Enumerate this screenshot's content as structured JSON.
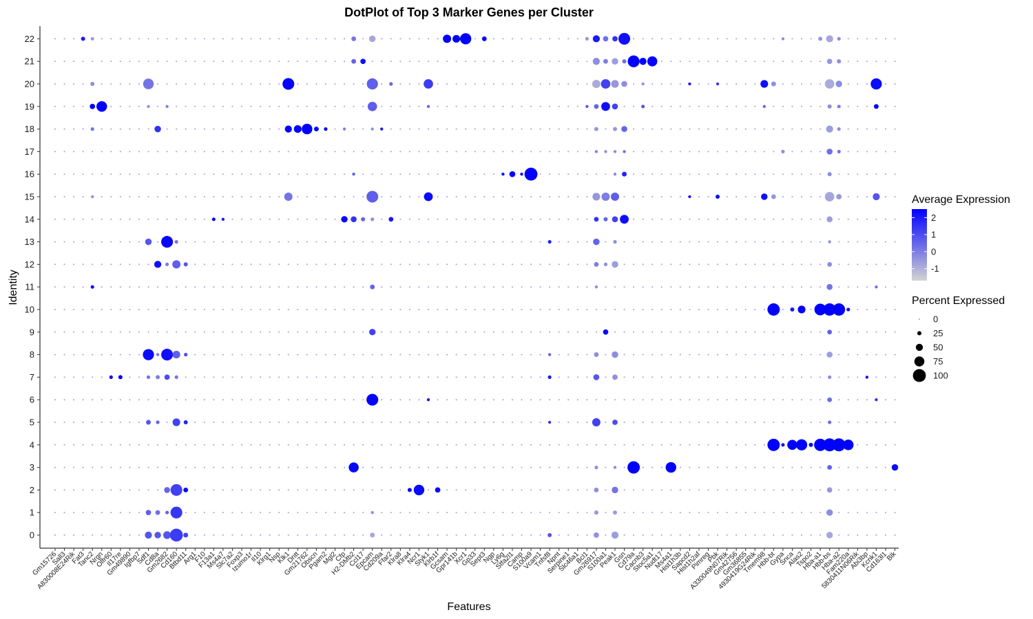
{
  "chart_data": {
    "type": "dotplot",
    "title": "DotPlot of Top 3 Marker Genes per Cluster",
    "xlabel": "Features",
    "ylabel": "Identity",
    "features": [
      "Gm15726",
      "Sall3",
      "A830008E24Rik",
      "Fat3",
      "Tanc2",
      "Nrgn",
      "Olfr60",
      "Il17re",
      "Gm49890",
      "Igfbp7",
      "Sdf1",
      "Cd8a",
      "Gm2682",
      "Cd160",
      "Btbd11",
      "Arg1",
      "F10",
      "F13a1",
      "Ms4a7",
      "Slc7a2",
      "Foxp3",
      "Izumo1r",
      "Il10",
      "Klrg1",
      "Nsp",
      "Klk1",
      "Dntt",
      "Gm21762",
      "Obscn",
      "Pgam2",
      "Mgl2",
      "Cfp",
      "H2-DMb2",
      "Ccl17",
      "Epcam",
      "Cd209a",
      "Ffar2",
      "Klra8",
      "Klra4",
      "Ncr1",
      "Styk1",
      "Klrb1f",
      "Gcsam",
      "Gpr141b",
      "Xcr1",
      "Gp33",
      "Sept3",
      "Ngp",
      "Ly6g",
      "Stfa2l1",
      "Camp",
      "S100a9",
      "Vcam1",
      "Tnfsf8",
      "Npnt",
      "Serpine1",
      "Slc46a1",
      "Bcl1",
      "Gm26917",
      "S100a1",
      "Peak1",
      "Gsn",
      "Cd79a",
      "Cacnb3",
      "Stoc5a1",
      "Nudt17",
      "Ms4a1",
      "Hist1h3b",
      "Sapcd2",
      "Hist1h2af",
      "Pimreg",
      "Pbk",
      "A330049N07Rik",
      "Gm42756",
      "Gm36855",
      "4930419G24Rik",
      "Tmem98",
      "Hbb-bt",
      "Gypa",
      "Snca",
      "Alas2",
      "Tspo2",
      "Hba-a1",
      "Hbb-bs",
      "Hba-a2",
      "Fam220a",
      "5830411N06Rik",
      "Abi3bp",
      "Kcnk1",
      "Cd163l1",
      "Blk"
    ],
    "identities": [
      "0",
      "1",
      "2",
      "3",
      "4",
      "5",
      "6",
      "7",
      "8",
      "9",
      "10",
      "11",
      "12",
      "13",
      "14",
      "15",
      "16",
      "17",
      "18",
      "19",
      "20",
      "21",
      "22"
    ],
    "dots": [
      [
        "22",
        "Fat3",
        25,
        2
      ],
      [
        "22",
        "Tanc2",
        18,
        -0.5
      ],
      [
        "22",
        "H2-DMb2",
        30,
        0.2
      ],
      [
        "22",
        "Epcam",
        45,
        -0.8
      ],
      [
        "22",
        "Gcsam",
        60,
        2.5
      ],
      [
        "22",
        "Gpr141b",
        55,
        2.5
      ],
      [
        "22",
        "Xcr1",
        85,
        2.5
      ],
      [
        "22",
        "Sept3",
        30,
        2.3
      ],
      [
        "22",
        "Bcl1",
        20,
        -0.5
      ],
      [
        "22",
        "Gm26917",
        50,
        2
      ],
      [
        "22",
        "S100a1",
        35,
        0.3
      ],
      [
        "22",
        "Peak1",
        35,
        1.5
      ],
      [
        "22",
        "Gsn",
        90,
        2.2
      ],
      [
        "22",
        "Gypa",
        15,
        -0.3
      ],
      [
        "22",
        "Hbb-bs",
        50,
        -0.8
      ],
      [
        "22",
        "Hba-a1",
        25,
        -0.5
      ],
      [
        "22",
        "Hba-a2",
        20,
        -0.3
      ],
      [
        "21",
        "H2-DMb2",
        30,
        0.5
      ],
      [
        "21",
        "Ccl17",
        35,
        2.2
      ],
      [
        "21",
        "Gm26917",
        50,
        -0.3
      ],
      [
        "21",
        "S100a1",
        30,
        0
      ],
      [
        "21",
        "Peak1",
        45,
        -0.6
      ],
      [
        "21",
        "Gsn",
        25,
        0.3
      ],
      [
        "21",
        "Cd79a",
        90,
        2.5
      ],
      [
        "21",
        "Cacnb3",
        50,
        2.5
      ],
      [
        "21",
        "Stoc5a1",
        75,
        2.4
      ],
      [
        "21",
        "Hbb-bs",
        35,
        -0.5
      ],
      [
        "21",
        "Hba-a2",
        25,
        -0.3
      ],
      [
        "20",
        "Tanc2",
        25,
        -0.3
      ],
      [
        "20",
        "Sdf1",
        80,
        0.2
      ],
      [
        "20",
        "Klk1",
        90,
        2.4
      ],
      [
        "20",
        "Epcam",
        85,
        0.6
      ],
      [
        "20",
        "Ffar2",
        20,
        0.5
      ],
      [
        "20",
        "Styk1",
        70,
        1.3
      ],
      [
        "20",
        "Gm26917",
        60,
        -0.9
      ],
      [
        "20",
        "S100a1",
        70,
        1.2
      ],
      [
        "20",
        "Peak1",
        55,
        -0.5
      ],
      [
        "20",
        "Gsn",
        40,
        -0.3
      ],
      [
        "20",
        "Cacnb3",
        15,
        -0.3
      ],
      [
        "20",
        "Sapcd2",
        15,
        2
      ],
      [
        "20",
        "Pbk",
        15,
        1.5
      ],
      [
        "20",
        "Tmem98",
        55,
        2.2
      ],
      [
        "20",
        "Hbb-bt",
        30,
        -0.3
      ],
      [
        "20",
        "Hbb-bs",
        70,
        -0.9
      ],
      [
        "20",
        "Hba-a2",
        45,
        -0.3
      ],
      [
        "20",
        "Kcnk1",
        85,
        2.3
      ],
      [
        "19",
        "Tanc2",
        35,
        2.5
      ],
      [
        "19",
        "Nrgn",
        80,
        2.5
      ],
      [
        "19",
        "Sdf1",
        15,
        -0.3
      ],
      [
        "19",
        "Gm2682",
        15,
        0
      ],
      [
        "19",
        "Epcam",
        70,
        0.6
      ],
      [
        "19",
        "Styk1",
        15,
        0.5
      ],
      [
        "19",
        "Bcl1",
        15,
        0.8
      ],
      [
        "19",
        "Gm26917",
        30,
        0.5
      ],
      [
        "19",
        "S100a1",
        65,
        2.2
      ],
      [
        "19",
        "Peak1",
        40,
        1.2
      ],
      [
        "19",
        "Cacnb3",
        20,
        0.8
      ],
      [
        "19",
        "Tmem98",
        15,
        0.5
      ],
      [
        "19",
        "Hbb-bs",
        25,
        -0.3
      ],
      [
        "19",
        "Hba-a2",
        20,
        0
      ],
      [
        "19",
        "Kcnk1",
        30,
        2.5
      ],
      [
        "18",
        "Tanc2",
        20,
        0.2
      ],
      [
        "18",
        "Cd8a",
        45,
        1.5
      ],
      [
        "18",
        "Klk1",
        50,
        2.5
      ],
      [
        "18",
        "Dntt",
        55,
        2.5
      ],
      [
        "18",
        "Gm21762",
        80,
        2.5
      ],
      [
        "18",
        "Obscn",
        30,
        2.4
      ],
      [
        "18",
        "Pgam2",
        20,
        2.4
      ],
      [
        "18",
        "Cfp",
        15,
        0
      ],
      [
        "18",
        "Epcam",
        15,
        -0.3
      ],
      [
        "18",
        "Cd209a",
        15,
        2
      ],
      [
        "18",
        "Gm26917",
        25,
        -0.5
      ],
      [
        "18",
        "Peak1",
        25,
        -0.5
      ],
      [
        "18",
        "Gsn",
        40,
        0.5
      ],
      [
        "18",
        "Hbb-bs",
        50,
        -0.6
      ],
      [
        "18",
        "Hba-a2",
        20,
        -0.3
      ],
      [
        "17",
        "Gm26917",
        15,
        0
      ],
      [
        "17",
        "S100a1",
        15,
        -0.3
      ],
      [
        "17",
        "Peak1",
        15,
        -0.2
      ],
      [
        "17",
        "Gsn",
        15,
        0.3
      ],
      [
        "17",
        "Hbb-bs",
        40,
        0.3
      ],
      [
        "17",
        "Hba-a2",
        20,
        0.2
      ],
      [
        "17",
        "Gypa",
        20,
        -0.3
      ],
      [
        "16",
        "H2-DMb2",
        15,
        0.6
      ],
      [
        "16",
        "Ly6g",
        15,
        2.4
      ],
      [
        "16",
        "Stfa2l1",
        40,
        2.4
      ],
      [
        "16",
        "Camp",
        15,
        2.4
      ],
      [
        "16",
        "S100a9",
        100,
        2.5
      ],
      [
        "16",
        "Gsn",
        30,
        1.8
      ],
      [
        "16",
        "Peak1",
        15,
        -0.2
      ],
      [
        "16",
        "Hbb-bs",
        25,
        -0.3
      ],
      [
        "15",
        "Tanc2",
        15,
        -0.3
      ],
      [
        "15",
        "Klk1",
        60,
        0.2
      ],
      [
        "15",
        "Epcam",
        90,
        0.6
      ],
      [
        "15",
        "Styk1",
        65,
        2.3
      ],
      [
        "15",
        "Gm26917",
        55,
        -0.5
      ],
      [
        "15",
        "S100a1",
        60,
        0
      ],
      [
        "15",
        "Peak1",
        60,
        0.6
      ],
      [
        "15",
        "Tmem98",
        45,
        2.2
      ],
      [
        "15",
        "Hbb-bt",
        30,
        -0.5
      ],
      [
        "15",
        "Hbb-bs",
        70,
        -0.8
      ],
      [
        "15",
        "Hba-a2",
        35,
        -0.5
      ],
      [
        "15",
        "Kcnk1",
        50,
        0.8
      ],
      [
        "15",
        "Sapcd2",
        15,
        2
      ],
      [
        "15",
        "Pbk",
        25,
        2.3
      ],
      [
        "14",
        "Cfp",
        45,
        2.3
      ],
      [
        "14",
        "H2-DMb2",
        40,
        1.5
      ],
      [
        "14",
        "Ccl17",
        25,
        0.5
      ],
      [
        "14",
        "Epcam",
        20,
        -0.3
      ],
      [
        "14",
        "Ffar2",
        30,
        2
      ],
      [
        "14",
        "F13a1",
        20,
        2.3
      ],
      [
        "14",
        "Ms4a7",
        15,
        2
      ],
      [
        "14",
        "Gm26917",
        30,
        1.5
      ],
      [
        "14",
        "S100a1",
        25,
        0.5
      ],
      [
        "14",
        "Peak1",
        40,
        1.2
      ],
      [
        "14",
        "Gsn",
        65,
        2.2
      ],
      [
        "14",
        "Hbb-bs",
        40,
        -0.6
      ],
      [
        "13",
        "Sdf1",
        45,
        0.8
      ],
      [
        "13",
        "Gm2682",
        90,
        2.4
      ],
      [
        "13",
        "Cd160",
        20,
        0.2
      ],
      [
        "13",
        "Tnfsf8",
        20,
        1.8
      ],
      [
        "13",
        "Gm26917",
        45,
        0.5
      ],
      [
        "13",
        "Peak1",
        20,
        -0.3
      ],
      [
        "13",
        "Hbb-bs",
        15,
        -0.3
      ],
      [
        "12",
        "Cd8a",
        50,
        2.2
      ],
      [
        "12",
        "Cd160",
        60,
        0.6
      ],
      [
        "12",
        "Gm2682",
        20,
        0
      ],
      [
        "12",
        "Btbd11",
        25,
        0.8
      ],
      [
        "12",
        "Gm26917",
        30,
        0
      ],
      [
        "12",
        "Peak1",
        45,
        -0.6
      ],
      [
        "12",
        "S100a1",
        20,
        -0.3
      ],
      [
        "12",
        "Hbb-bs",
        30,
        -0.3
      ],
      [
        "11",
        "Tanc2",
        20,
        2.2
      ],
      [
        "11",
        "Epcam",
        30,
        0.5
      ],
      [
        "11",
        "Hbb-bs",
        40,
        0.2
      ],
      [
        "11",
        "Gm26917",
        15,
        -0.3
      ],
      [
        "11",
        "Kcnk1",
        15,
        0.3
      ],
      [
        "10",
        "Hbb-bt",
        95,
        2.5
      ],
      [
        "10",
        "Snca",
        25,
        2
      ],
      [
        "10",
        "Alas2",
        55,
        2.5
      ],
      [
        "10",
        "Hba-a1",
        90,
        2.5
      ],
      [
        "10",
        "Hbb-bs",
        95,
        2.5
      ],
      [
        "10",
        "Hba-a2",
        95,
        2.5
      ],
      [
        "10",
        "Fam220a",
        20,
        2.2
      ],
      [
        "9",
        "Epcam",
        45,
        1.2
      ],
      [
        "9",
        "S100a1",
        35,
        2.3
      ],
      [
        "9",
        "Hbb-bs",
        30,
        0.5
      ],
      [
        "8",
        "Sdf1",
        85,
        2.3
      ],
      [
        "8",
        "Cd8a",
        15,
        0.3
      ],
      [
        "8",
        "Gm2682",
        90,
        2.2
      ],
      [
        "8",
        "Cd160",
        55,
        0.6
      ],
      [
        "8",
        "Btbd11",
        20,
        1
      ],
      [
        "8",
        "Gm26917",
        30,
        -0.3
      ],
      [
        "8",
        "Peak1",
        45,
        -0.3
      ],
      [
        "8",
        "Tnfsf8",
        15,
        0.5
      ],
      [
        "8",
        "Hbb-bs",
        40,
        -0.6
      ],
      [
        "7",
        "Olfr60",
        20,
        2.5
      ],
      [
        "7",
        "Il17re",
        25,
        2.5
      ],
      [
        "7",
        "Sdf1",
        20,
        0.2
      ],
      [
        "7",
        "Cd8a",
        25,
        0
      ],
      [
        "7",
        "Gm2682",
        35,
        1
      ],
      [
        "7",
        "Cd160",
        20,
        0.2
      ],
      [
        "7",
        "Gm26917",
        40,
        0.8
      ],
      [
        "7",
        "Peak1",
        35,
        -0.3
      ],
      [
        "7",
        "Tnfsf8",
        20,
        2
      ],
      [
        "7",
        "Hbb-bs",
        20,
        -0.3
      ],
      [
        "7",
        "Abi3bp",
        15,
        2.3
      ],
      [
        "6",
        "Epcam",
        90,
        2.4
      ],
      [
        "6",
        "Styk1",
        15,
        2
      ],
      [
        "6",
        "Hbb-bs",
        30,
        0.3
      ],
      [
        "6",
        "Kcnk1",
        15,
        1.5
      ],
      [
        "5",
        "Sdf1",
        30,
        0.8
      ],
      [
        "5",
        "Cd8a",
        20,
        0.5
      ],
      [
        "5",
        "Cd160",
        55,
        1.2
      ],
      [
        "5",
        "Btbd11",
        25,
        1.8
      ],
      [
        "5",
        "Gm26917",
        60,
        1.2
      ],
      [
        "5",
        "Peak1",
        35,
        1
      ],
      [
        "5",
        "Tnfsf8",
        15,
        1.5
      ],
      [
        "5",
        "Hbb-bs",
        20,
        0.3
      ],
      [
        "4",
        "Hbb-bt",
        95,
        2.5
      ],
      [
        "4",
        "Gypa",
        20,
        2.2
      ],
      [
        "4",
        "Snca",
        75,
        2.5
      ],
      [
        "4",
        "Alas2",
        85,
        2.5
      ],
      [
        "4",
        "Tspo2",
        25,
        2.3
      ],
      [
        "4",
        "Hba-a1",
        95,
        2.5
      ],
      [
        "4",
        "Hbb-bs",
        100,
        2.5
      ],
      [
        "4",
        "Hba-a2",
        100,
        2.5
      ],
      [
        "4",
        "Fam220a",
        80,
        2.5
      ],
      [
        "3",
        "H2-DMb2",
        75,
        2.4
      ],
      [
        "3",
        "Cd79a",
        95,
        2.5
      ],
      [
        "3",
        "Ms4a1",
        80,
        2.5
      ],
      [
        "3",
        "Gm26917",
        20,
        -0.3
      ],
      [
        "3",
        "Peak1",
        15,
        -0.3
      ],
      [
        "3",
        "Hbb-bs",
        30,
        0.5
      ],
      [
        "3",
        "Blk",
        45,
        2.3
      ],
      [
        "2",
        "Cd160",
        90,
        1.2
      ],
      [
        "2",
        "Gm2682",
        40,
        0.5
      ],
      [
        "2",
        "Btbd11",
        30,
        2.3
      ],
      [
        "2",
        "Ncr1",
        80,
        2.3
      ],
      [
        "2",
        "Klra4",
        25,
        2.3
      ],
      [
        "2",
        "Klrb1f",
        35,
        2.3
      ],
      [
        "2",
        "Gm26917",
        30,
        -0.3
      ],
      [
        "2",
        "Peak1",
        45,
        0.2
      ],
      [
        "2",
        "Hbb-bs",
        35,
        -0.5
      ],
      [
        "1",
        "Sdf1",
        35,
        0.6
      ],
      [
        "1",
        "Cd8a",
        30,
        0.3
      ],
      [
        "1",
        "Cd160",
        90,
        1.4
      ],
      [
        "1",
        "Gm2682",
        20,
        0.5
      ],
      [
        "1",
        "Gm26917",
        25,
        -0.5
      ],
      [
        "1",
        "Peak1",
        25,
        -0.6
      ],
      [
        "1",
        "Hbb-bs",
        45,
        -0.3
      ],
      [
        "1",
        "Epcam",
        15,
        -0.3
      ],
      [
        "0",
        "Sdf1",
        50,
        0.8
      ],
      [
        "0",
        "Cd8a",
        45,
        0.8
      ],
      [
        "0",
        "Gm2682",
        55,
        0.8
      ],
      [
        "0",
        "Cd160",
        100,
        1.3
      ],
      [
        "0",
        "Btbd11",
        30,
        1.2
      ],
      [
        "0",
        "Gm26917",
        35,
        -0.3
      ],
      [
        "0",
        "Peak1",
        50,
        -0.6
      ],
      [
        "0",
        "Tnfsf8",
        25,
        0.8
      ],
      [
        "0",
        "Hbb-bs",
        45,
        -0.8
      ],
      [
        "0",
        "Epcam",
        30,
        -0.8
      ]
    ],
    "color_scale": {
      "low": "#d3d3d3",
      "high": "#0000ff",
      "range": [
        -1.7,
        2.5
      ]
    },
    "legend": {
      "color_title": "Average Expression",
      "color_ticks": [
        {
          "value": 2,
          "label": "2"
        },
        {
          "value": 1,
          "label": "1"
        },
        {
          "value": 0,
          "label": "0"
        },
        {
          "value": -1,
          "label": "-1"
        }
      ],
      "size_title": "Percent Expressed",
      "size_ticks": [
        {
          "value": 0,
          "label": "0"
        },
        {
          "value": 25,
          "label": "25"
        },
        {
          "value": 50,
          "label": "50"
        },
        {
          "value": 75,
          "label": "75"
        },
        {
          "value": 100,
          "label": "100"
        }
      ],
      "placement": "right"
    },
    "grid": false
  }
}
